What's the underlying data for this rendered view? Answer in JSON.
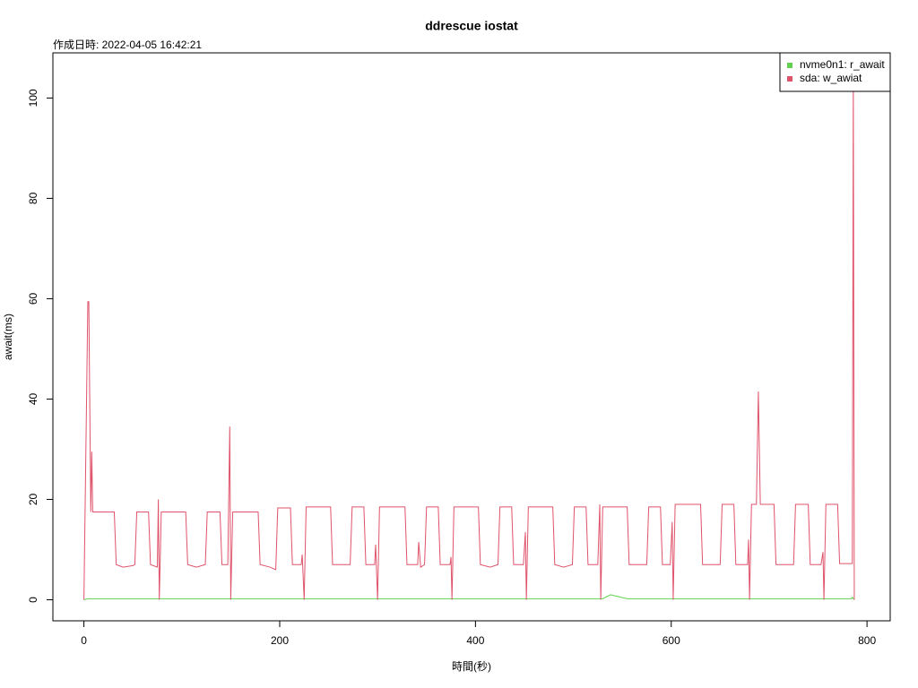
{
  "chart_data": {
    "type": "line",
    "title": "ddrescue iostat",
    "subtitle": "作成日時: 2022-04-05 16:42:21",
    "x_label": "時間(秒)",
    "y_label": "await(ms)",
    "xlim": [
      -31.7,
      823.7
    ],
    "ylim": [
      -4.2,
      109
    ],
    "xticks": [
      0,
      200,
      400,
      600,
      800
    ],
    "yticks": [
      0,
      20,
      40,
      60,
      80,
      100
    ],
    "legend": "top-right",
    "x": [
      0,
      4,
      5,
      7,
      8,
      9,
      31,
      33,
      40,
      50,
      52,
      54,
      66,
      68,
      75,
      76,
      77,
      79,
      104,
      106,
      115,
      124,
      126,
      139,
      141,
      147,
      149,
      150,
      152,
      178,
      180,
      190,
      196,
      198,
      211,
      213,
      222,
      223,
      225,
      227,
      252,
      254,
      265,
      272,
      274,
      286,
      288,
      297,
      298,
      300,
      302,
      328,
      330,
      341,
      342,
      344,
      348,
      350,
      362,
      364,
      374,
      375,
      376,
      378,
      403,
      405,
      415,
      423,
      425,
      437,
      439,
      449,
      451,
      452,
      454,
      479,
      481,
      490,
      499,
      501,
      513,
      515,
      525,
      527,
      528,
      530,
      538,
      555,
      557,
      568,
      575,
      577,
      589,
      591,
      599,
      601,
      602,
      604,
      630,
      632,
      643,
      650,
      652,
      664,
      666,
      678,
      679,
      680,
      682,
      687,
      689,
      691,
      705,
      707,
      718,
      725,
      727,
      740,
      742,
      753,
      755,
      756,
      758,
      770,
      772,
      784,
      785,
      786,
      787
    ],
    "series": [
      {
        "name": "nvme0n1: r_await",
        "color": "#61D04F",
        "values": [
          0,
          0.2,
          0.2,
          0.2,
          0.2,
          0.2,
          0.2,
          0.2,
          0.2,
          0.2,
          0.2,
          0.2,
          0.2,
          0.2,
          0.2,
          0.2,
          0.2,
          0.2,
          0.2,
          0.2,
          0.2,
          0.2,
          0.2,
          0.2,
          0.2,
          0.2,
          0.2,
          0.2,
          0.2,
          0.2,
          0.2,
          0.2,
          0.2,
          0.2,
          0.2,
          0.2,
          0.2,
          0.2,
          0.2,
          0.2,
          0.2,
          0.2,
          0.2,
          0.2,
          0.2,
          0.2,
          0.2,
          0.2,
          0.2,
          0.2,
          0.2,
          0.2,
          0.2,
          0.2,
          0.2,
          0.2,
          0.2,
          0.2,
          0.2,
          0.2,
          0.2,
          0.2,
          0.2,
          0.2,
          0.2,
          0.2,
          0.2,
          0.2,
          0.2,
          0.2,
          0.2,
          0.2,
          0.2,
          0.2,
          0.2,
          0.2,
          0.2,
          0.2,
          0.2,
          0.2,
          0.2,
          0.2,
          0.2,
          0.2,
          0.2,
          0.2,
          1,
          0.2,
          0.2,
          0.2,
          0.2,
          0.2,
          0.2,
          0.2,
          0.2,
          0.2,
          0.2,
          0.2,
          0.2,
          0.2,
          0.2,
          0.2,
          0.2,
          0.2,
          0.2,
          0.2,
          0.2,
          0.2,
          0.2,
          0.2,
          0.2,
          0.2,
          0.2,
          0.2,
          0.2,
          0.2,
          0.2,
          0.2,
          0.2,
          0.2,
          0.2,
          0.2,
          0.2,
          0.2,
          0.2,
          0.2,
          0.5,
          0.2,
          0
        ]
      },
      {
        "name": "sda: w_awiat",
        "color": "#DF536B",
        "values": [
          0,
          59.4,
          59.4,
          17.5,
          29.5,
          17.5,
          17.5,
          7,
          6.5,
          6.8,
          7,
          17.5,
          17.5,
          7,
          6.5,
          20,
          0,
          17.5,
          17.5,
          7,
          6.5,
          7,
          17.5,
          17.5,
          7,
          7,
          34.5,
          0,
          17.5,
          17.5,
          7,
          6.5,
          6,
          18.3,
          18.3,
          7,
          7,
          9,
          0,
          18.5,
          18.5,
          7,
          7,
          7,
          18.5,
          18.5,
          7,
          7,
          11,
          0,
          18.5,
          18.5,
          7,
          7,
          11.5,
          6.5,
          7,
          18.5,
          18.5,
          7,
          7,
          8.5,
          0,
          18.5,
          18.5,
          7,
          6.5,
          7,
          18.5,
          18.5,
          7,
          7,
          13.5,
          0,
          18.5,
          18.5,
          7,
          6.5,
          7,
          18.5,
          18.5,
          7,
          7,
          19,
          0,
          18.5,
          18.5,
          18.5,
          7,
          7,
          7,
          18.5,
          18.5,
          7,
          7,
          15.5,
          0,
          19,
          19,
          7,
          7,
          7,
          19,
          19,
          7,
          7,
          12,
          0,
          19,
          19,
          41.5,
          19,
          19,
          7,
          7,
          7,
          19,
          19,
          7,
          7,
          9.5,
          0,
          19,
          19,
          7.2,
          7.2,
          7.2,
          104,
          0
        ]
      }
    ]
  }
}
